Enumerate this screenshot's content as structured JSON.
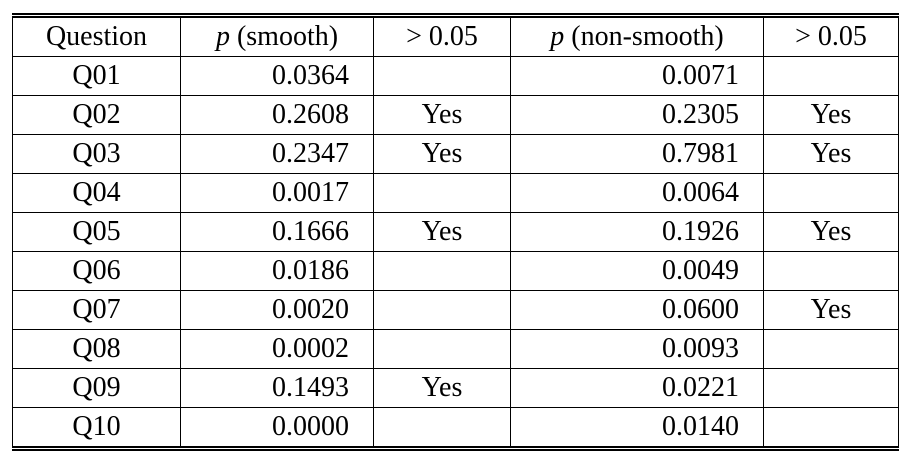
{
  "table": {
    "header": [
      "Question",
      "p (smooth)",
      "> 0.05",
      "p (non-smooth)",
      "> 0.05"
    ],
    "rows": [
      [
        "Q01",
        "0.0364",
        null,
        "0.0071",
        null
      ],
      [
        "Q02",
        "0.2608",
        "Yes",
        "0.2305",
        "Yes"
      ],
      [
        "Q03",
        "0.2347",
        "Yes",
        "0.7981",
        "Yes"
      ],
      [
        "Q04",
        "0.0017",
        null,
        "0.0064",
        null
      ],
      [
        "Q05",
        "0.1666",
        "Yes",
        "0.1926",
        "Yes"
      ],
      [
        "Q06",
        "0.0186",
        null,
        "0.0049",
        null
      ],
      [
        "Q07",
        "0.0020",
        null,
        "0.0600",
        "Yes"
      ],
      [
        "Q08",
        "0.0002",
        null,
        "0.0093",
        null
      ],
      [
        "Q09",
        "0.1493",
        "Yes",
        "0.0221",
        null
      ],
      [
        "Q10",
        "0.0000",
        null,
        "0.0140",
        null
      ]
    ]
  }
}
